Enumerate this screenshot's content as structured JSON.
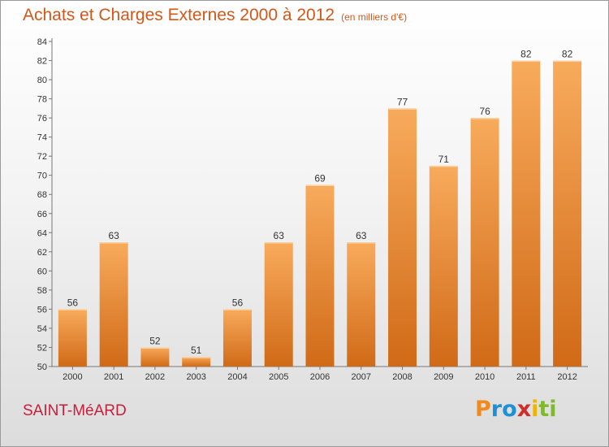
{
  "header": {
    "title": "Achats et Charges Externes 2000 à 2012",
    "unit": "(en milliers d'€)"
  },
  "footer": {
    "commune": "SAINT-MéARD",
    "brand": "Proxiti"
  },
  "colors": {
    "title": "#d2581a",
    "commune": "#c81e3c",
    "bar_light": "#f8ab5c",
    "bar_dark": "#d06a17",
    "brand_letters": [
      "#f08a1e",
      "#1e90d8",
      "#1e90d8",
      "#d02c2c",
      "#f0b400",
      "#80b830",
      "#80b830"
    ]
  },
  "chart_data": {
    "type": "bar",
    "categories": [
      "2000",
      "2001",
      "2002",
      "2003",
      "2004",
      "2005",
      "2006",
      "2007",
      "2008",
      "2009",
      "2010",
      "2011",
      "2012"
    ],
    "values": [
      56,
      63,
      52,
      51,
      56,
      63,
      69,
      63,
      77,
      71,
      76,
      82,
      82
    ],
    "ylim": [
      50,
      84
    ],
    "yticks": [
      50,
      52,
      54,
      56,
      58,
      60,
      62,
      64,
      66,
      68,
      70,
      72,
      74,
      76,
      78,
      80,
      82,
      84
    ],
    "grid": false
  }
}
